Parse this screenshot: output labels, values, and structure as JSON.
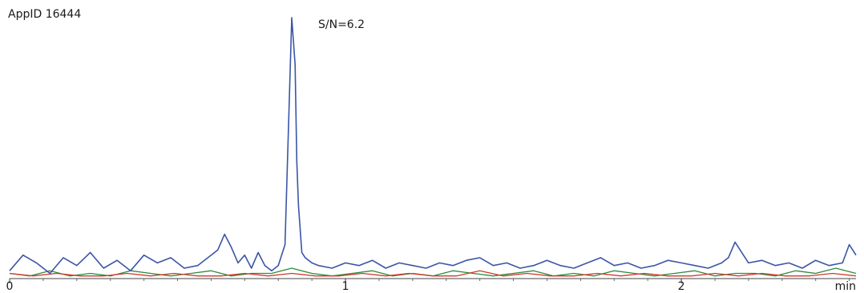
{
  "chart_data": {
    "type": "line",
    "title": "AppID 16444",
    "xlabel": "min",
    "ylabel": "",
    "xlim": [
      0,
      2.52
    ],
    "ylim": [
      0,
      100
    ],
    "x_ticks": [
      {
        "value": 0,
        "label": "0"
      },
      {
        "value": 1,
        "label": "1"
      },
      {
        "value": 2,
        "label": "2"
      }
    ],
    "minor_tick_step": 0.1,
    "grid": false,
    "legend": "none",
    "annotations": [
      {
        "text": "S/N=6.2",
        "x": 0.855,
        "y": 100
      }
    ],
    "series": [
      {
        "color": "#3b55a6",
        "x": [
          0,
          0.04,
          0.08,
          0.12,
          0.16,
          0.2,
          0.24,
          0.28,
          0.32,
          0.36,
          0.4,
          0.44,
          0.48,
          0.52,
          0.56,
          0.6,
          0.62,
          0.64,
          0.66,
          0.68,
          0.7,
          0.72,
          0.74,
          0.76,
          0.78,
          0.8,
          0.82,
          0.84,
          0.85,
          0.855,
          0.86,
          0.87,
          0.88,
          0.9,
          0.92,
          0.96,
          1.0,
          1.04,
          1.08,
          1.12,
          1.16,
          1.2,
          1.24,
          1.28,
          1.32,
          1.36,
          1.4,
          1.44,
          1.48,
          1.52,
          1.56,
          1.6,
          1.64,
          1.68,
          1.72,
          1.76,
          1.8,
          1.84,
          1.88,
          1.92,
          1.96,
          2.0,
          2.04,
          2.08,
          2.12,
          2.14,
          2.16,
          2.2,
          2.24,
          2.28,
          2.32,
          2.36,
          2.4,
          2.44,
          2.48,
          2.5,
          2.52
        ],
        "y": [
          3,
          9,
          6,
          2,
          8,
          5,
          10,
          4,
          7,
          3,
          9,
          6,
          8,
          4,
          5,
          9,
          11,
          17,
          12,
          6,
          9,
          4,
          10,
          5,
          3,
          5,
          13,
          100,
          82,
          45,
          28,
          10,
          8,
          6,
          5,
          4,
          6,
          5,
          7,
          4,
          6,
          5,
          4,
          6,
          5,
          7,
          8,
          5,
          6,
          4,
          5,
          7,
          5,
          4,
          6,
          8,
          5,
          6,
          4,
          5,
          7,
          6,
          5,
          4,
          6,
          8,
          14,
          6,
          7,
          5,
          6,
          4,
          7,
          5,
          6,
          13,
          9
        ]
      },
      {
        "color": "#2e8b3e",
        "x": [
          0,
          0.06,
          0.12,
          0.18,
          0.24,
          0.3,
          0.36,
          0.42,
          0.48,
          0.54,
          0.6,
          0.66,
          0.72,
          0.78,
          0.84,
          0.9,
          0.96,
          1.02,
          1.08,
          1.14,
          1.2,
          1.26,
          1.32,
          1.38,
          1.44,
          1.5,
          1.56,
          1.62,
          1.68,
          1.74,
          1.8,
          1.86,
          1.92,
          1.98,
          2.04,
          2.1,
          2.16,
          2.22,
          2.28,
          2.34,
          2.4,
          2.46,
          2.52
        ],
        "y": [
          2,
          1,
          3,
          1,
          2,
          1,
          3,
          2,
          1,
          2,
          3,
          1,
          2,
          2,
          4,
          2,
          1,
          2,
          3,
          1,
          2,
          1,
          3,
          2,
          1,
          2,
          3,
          1,
          2,
          1,
          3,
          2,
          1,
          2,
          3,
          1,
          2,
          2,
          1,
          3,
          2,
          4,
          2
        ]
      },
      {
        "color": "#d03a2a",
        "x": [
          0,
          0.07,
          0.14,
          0.21,
          0.28,
          0.35,
          0.42,
          0.49,
          0.56,
          0.63,
          0.7,
          0.77,
          0.84,
          0.91,
          0.98,
          1.05,
          1.12,
          1.19,
          1.26,
          1.33,
          1.4,
          1.47,
          1.54,
          1.61,
          1.68,
          1.75,
          1.82,
          1.89,
          1.96,
          2.03,
          2.1,
          2.17,
          2.24,
          2.31,
          2.38,
          2.45,
          2.52
        ],
        "y": [
          2,
          1,
          2,
          1,
          1,
          2,
          1,
          2,
          1,
          1,
          2,
          1,
          2,
          1,
          1,
          2,
          1,
          2,
          1,
          1,
          3,
          1,
          2,
          1,
          1,
          2,
          1,
          2,
          1,
          1,
          2,
          1,
          2,
          1,
          1,
          2,
          1
        ]
      }
    ]
  }
}
